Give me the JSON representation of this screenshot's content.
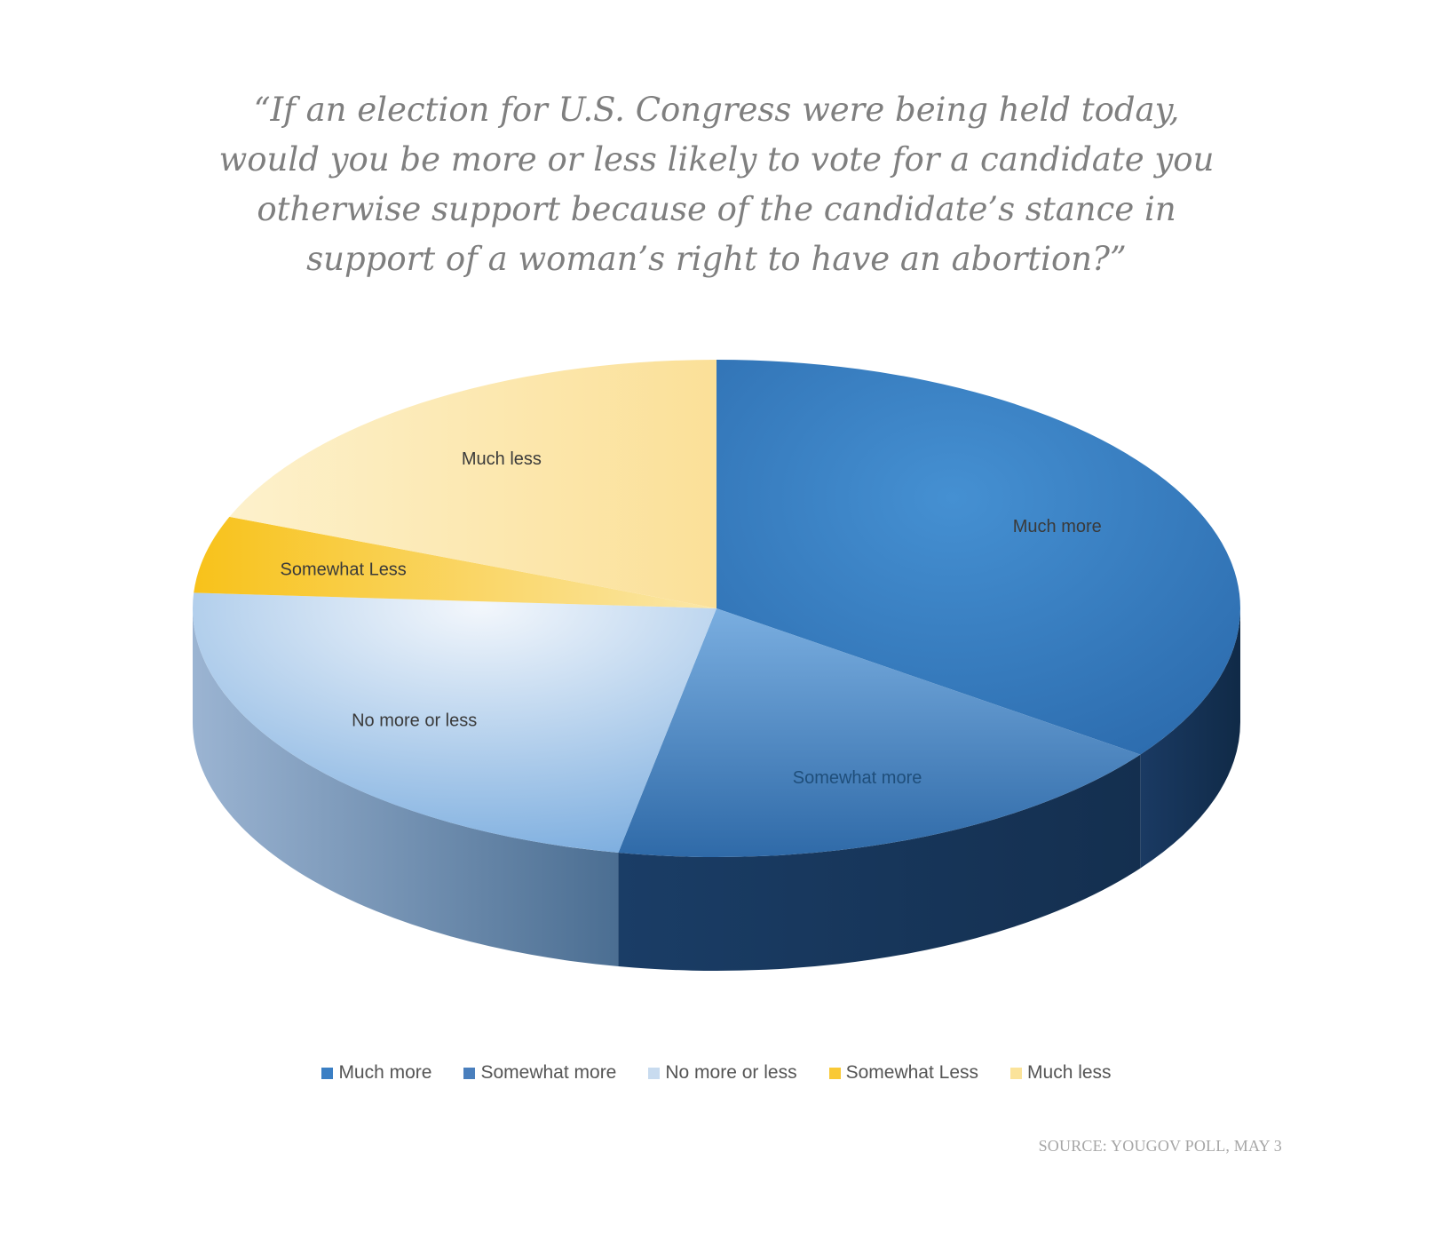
{
  "chart_data": {
    "type": "pie",
    "title_lines": [
      "“If  an election for U.S. Congress were being held today,",
      "would you be more or less likely to vote for a candidate you",
      "otherwise support because of  the candidate’s stance in",
      "support of  a woman’s right to have an abortion?”"
    ],
    "categories": [
      "Much more",
      "Somewhat more",
      "No more or less",
      "Somewhat Less",
      "Much less"
    ],
    "values": [
      35,
      18,
      23,
      5,
      19
    ],
    "colors": [
      "#3b7fc4",
      "#5a91cf",
      "#b8d0ea",
      "#f9c935",
      "#fbe39a"
    ],
    "legend_position": "bottom",
    "data_labels": true,
    "source": "SOURCE: YOUGOV POLL, MAY 3"
  }
}
